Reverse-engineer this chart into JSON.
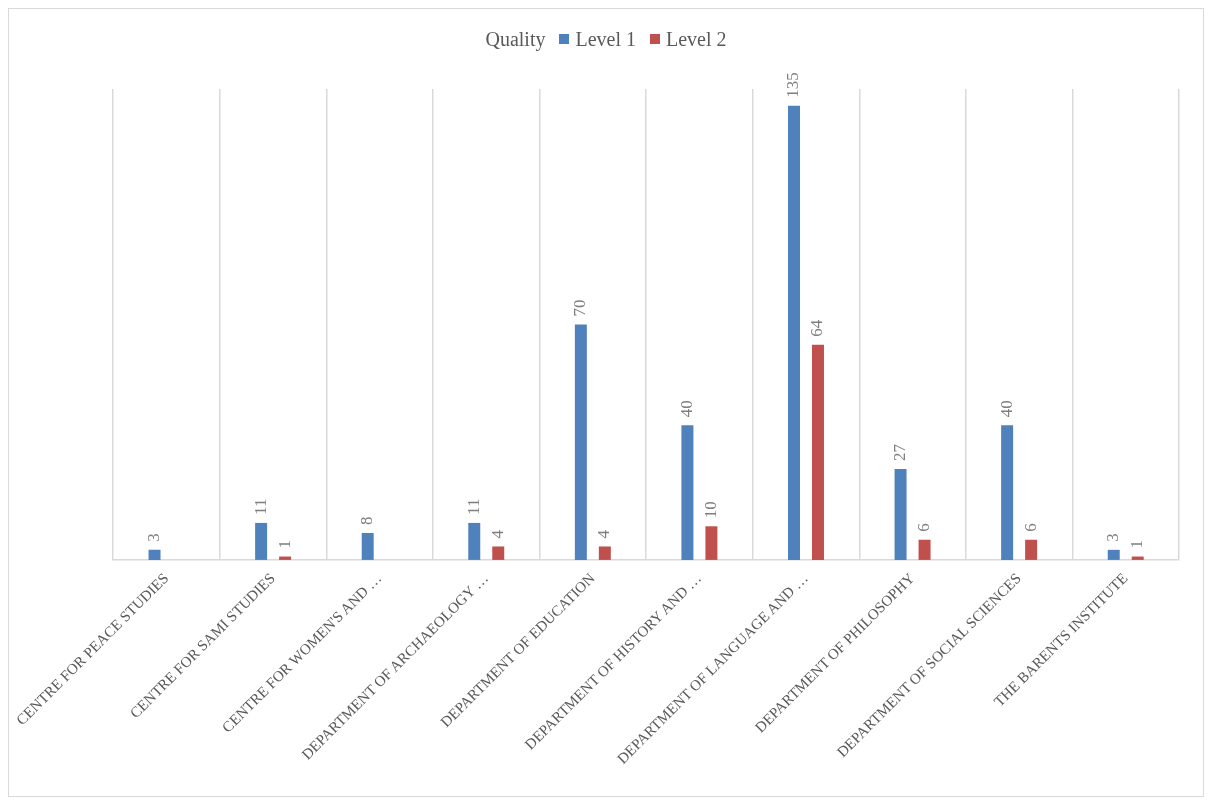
{
  "chart_data": {
    "type": "bar",
    "legend_title": "Quality",
    "categories": [
      "CENTRE FOR PEACE STUDIES",
      "CENTRE FOR SAMI STUDIES",
      "CENTRE FOR WOMEN'S AND …",
      "DEPARTMENT OF ARCHAEOLOGY …",
      "DEPARTMENT OF EDUCATION",
      "DEPARTMENT OF HISTORY AND …",
      "DEPARTMENT OF LANGUAGE AND …",
      "DEPARTMENT OF PHILOSOPHY",
      "DEPARTMENT OF SOCIAL SCIENCES",
      "THE BARENTS INSTITUTE"
    ],
    "series": [
      {
        "name": "Level 1",
        "color": "#4f81bd",
        "values": [
          3,
          11,
          8,
          11,
          70,
          40,
          135,
          27,
          40,
          3
        ]
      },
      {
        "name": "Level 2",
        "color": "#c0504d",
        "values": [
          null,
          1,
          null,
          4,
          4,
          10,
          64,
          6,
          6,
          1
        ]
      }
    ],
    "data_labels": true,
    "grid": "x",
    "legend": "top"
  }
}
